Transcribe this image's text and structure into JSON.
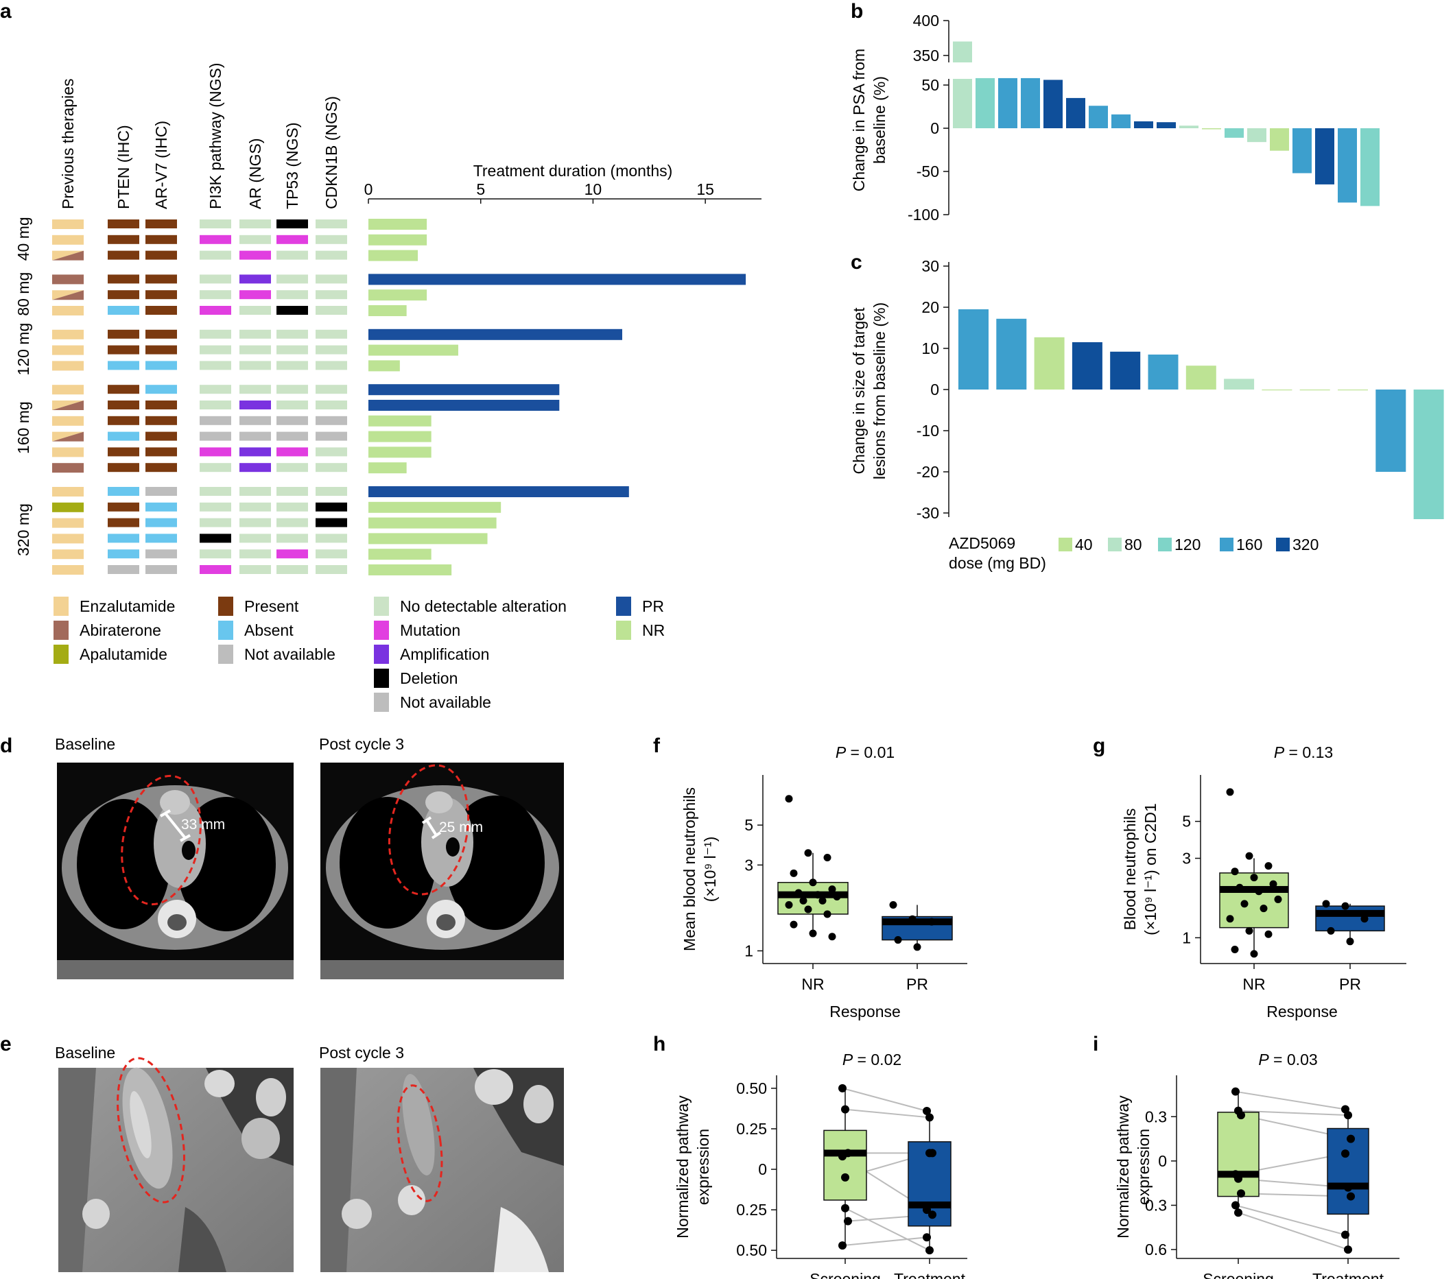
{
  "colors": {
    "enzalutamide": "#f3d293",
    "abiraterone": "#a26a5b",
    "apalutamide": "#a4ac14",
    "present": "#7b3a10",
    "absent": "#68c6ee",
    "not_available": "#bdbdbd",
    "no_alteration": "#cbe3c6",
    "mutation": "#e13ee0",
    "amplification": "#7a32e0",
    "deletion": "#000000",
    "pr": "#1a4f9d",
    "nr": "#bde394",
    "dose40": "#bde394",
    "dose80": "#b6e3c7",
    "dose120": "#7fd4c8",
    "dose160": "#3d9fcd",
    "dose320": "#0f4f9a",
    "box_nr": "#bde394",
    "box_pr": "#14539d",
    "ellipse": "#e3261f"
  },
  "panel_a": {
    "letter": "a",
    "columns": [
      "Previous therapies",
      "PTEN (IHC)",
      "AR-V7 (IHC)",
      "PI3K pathway (NGS)",
      "AR (NGS)",
      "TP53 (NGS)",
      "CDKN1B (NGS)"
    ],
    "dose_groups": [
      "40 mg",
      "80 mg",
      "120 mg",
      "160 mg",
      "320 mg"
    ],
    "axis_title": "Treatment duration (months)",
    "ticks": [
      0,
      5,
      10,
      15
    ],
    "xmax": 17.5,
    "patients": [
      {
        "dose": "40 mg",
        "therapy": "E",
        "pten": "P",
        "arv7": "P",
        "pi3k": "N",
        "ar": "N",
        "tp53": "D",
        "cdkn1b": "N",
        "duration": 2.6,
        "response": "NR"
      },
      {
        "dose": "40 mg",
        "therapy": "E",
        "pten": "P",
        "arv7": "P",
        "pi3k": "M",
        "ar": "N",
        "tp53": "M",
        "cdkn1b": "N",
        "duration": 2.6,
        "response": "NR"
      },
      {
        "dose": "40 mg",
        "therapy": "EA",
        "pten": "P",
        "arv7": "P",
        "pi3k": "N",
        "ar": "M",
        "tp53": "N",
        "cdkn1b": "N",
        "duration": 2.2,
        "response": "NR"
      },
      {
        "dose": "80 mg",
        "therapy": "A",
        "pten": "P",
        "arv7": "P",
        "pi3k": "N",
        "ar": "A",
        "tp53": "N",
        "cdkn1b": "N",
        "duration": 16.8,
        "response": "PR"
      },
      {
        "dose": "80 mg",
        "therapy": "EA",
        "pten": "P",
        "arv7": "P",
        "pi3k": "N",
        "ar": "M",
        "tp53": "N",
        "cdkn1b": "N",
        "duration": 2.6,
        "response": "NR"
      },
      {
        "dose": "80 mg",
        "therapy": "E",
        "pten": "B",
        "arv7": "P",
        "pi3k": "M",
        "ar": "N",
        "tp53": "D",
        "cdkn1b": "N",
        "duration": 1.7,
        "response": "NR"
      },
      {
        "dose": "120 mg",
        "therapy": "E",
        "pten": "P",
        "arv7": "P",
        "pi3k": "N",
        "ar": "N",
        "tp53": "N",
        "cdkn1b": "N",
        "duration": 11.3,
        "response": "PR"
      },
      {
        "dose": "120 mg",
        "therapy": "E",
        "pten": "P",
        "arv7": "P",
        "pi3k": "N",
        "ar": "N",
        "tp53": "N",
        "cdkn1b": "N",
        "duration": 4.0,
        "response": "NR"
      },
      {
        "dose": "120 mg",
        "therapy": "E",
        "pten": "B",
        "arv7": "B",
        "pi3k": "N",
        "ar": "N",
        "tp53": "N",
        "cdkn1b": "N",
        "duration": 1.4,
        "response": "NR"
      },
      {
        "dose": "160 mg",
        "therapy": "E",
        "pten": "P",
        "arv7": "B",
        "pi3k": "N",
        "ar": "N",
        "tp53": "N",
        "cdkn1b": "N",
        "duration": 8.5,
        "response": "PR"
      },
      {
        "dose": "160 mg",
        "therapy": "EA",
        "pten": "P",
        "arv7": "P",
        "pi3k": "N",
        "ar": "A",
        "tp53": "N",
        "cdkn1b": "N",
        "duration": 8.5,
        "response": "PR"
      },
      {
        "dose": "160 mg",
        "therapy": "E",
        "pten": "P",
        "arv7": "P",
        "pi3k": "X",
        "ar": "X",
        "tp53": "X",
        "cdkn1b": "X",
        "duration": 2.8,
        "response": "NR"
      },
      {
        "dose": "160 mg",
        "therapy": "EA",
        "pten": "B",
        "arv7": "P",
        "pi3k": "X",
        "ar": "X",
        "tp53": "X",
        "cdkn1b": "X",
        "duration": 2.8,
        "response": "NR"
      },
      {
        "dose": "160 mg",
        "therapy": "E",
        "pten": "P",
        "arv7": "P",
        "pi3k": "M",
        "ar": "A",
        "tp53": "M",
        "cdkn1b": "N",
        "duration": 2.8,
        "response": "NR"
      },
      {
        "dose": "160 mg",
        "therapy": "A",
        "pten": "P",
        "arv7": "P",
        "pi3k": "N",
        "ar": "A",
        "tp53": "N",
        "cdkn1b": "N",
        "duration": 1.7,
        "response": "NR"
      },
      {
        "dose": "320 mg",
        "therapy": "E",
        "pten": "B",
        "arv7": "X",
        "pi3k": "N",
        "ar": "N",
        "tp53": "N",
        "cdkn1b": "N",
        "duration": 11.6,
        "response": "PR"
      },
      {
        "dose": "320 mg",
        "therapy": "L",
        "pten": "P",
        "arv7": "B",
        "pi3k": "N",
        "ar": "N",
        "tp53": "N",
        "cdkn1b": "D",
        "duration": 5.9,
        "response": "NR"
      },
      {
        "dose": "320 mg",
        "therapy": "E",
        "pten": "P",
        "arv7": "B",
        "pi3k": "N",
        "ar": "N",
        "tp53": "N",
        "cdkn1b": "D",
        "duration": 5.7,
        "response": "NR"
      },
      {
        "dose": "320 mg",
        "therapy": "E",
        "pten": "B",
        "arv7": "B",
        "pi3k": "D",
        "ar": "N",
        "tp53": "N",
        "cdkn1b": "N",
        "duration": 5.3,
        "response": "NR"
      },
      {
        "dose": "320 mg",
        "therapy": "E",
        "pten": "B",
        "arv7": "X",
        "pi3k": "N",
        "ar": "N",
        "tp53": "M",
        "cdkn1b": "N",
        "duration": 2.8,
        "response": "NR"
      },
      {
        "dose": "320 mg",
        "therapy": "E",
        "pten": "X",
        "arv7": "X",
        "pi3k": "M",
        "ar": "N",
        "tp53": "N",
        "cdkn1b": "N",
        "duration": 3.7,
        "response": "NR"
      }
    ],
    "legend": [
      [
        {
          "label": "Enzalutamide",
          "color": "enzalutamide"
        },
        {
          "label": "Abiraterone",
          "color": "abiraterone"
        },
        {
          "label": "Apalutamide",
          "color": "apalutamide"
        }
      ],
      [
        {
          "label": "Present",
          "color": "present"
        },
        {
          "label": "Absent",
          "color": "absent"
        },
        {
          "label": "Not available",
          "color": "not_available"
        }
      ],
      [
        {
          "label": "No detectable alteration",
          "color": "no_alteration"
        },
        {
          "label": "Mutation",
          "color": "mutation"
        },
        {
          "label": "Amplification",
          "color": "amplification"
        },
        {
          "label": "Deletion",
          "color": "deletion"
        },
        {
          "label": "Not available",
          "color": "not_available"
        }
      ],
      [
        {
          "label": "PR",
          "color": "pr"
        },
        {
          "label": "NR",
          "color": "nr"
        }
      ]
    ]
  },
  "chart_data": [
    {
      "panel": "b",
      "type": "bar",
      "ylabel": "Change in PSA from baseline (%)",
      "yticks_upper": [
        350,
        400
      ],
      "yticks_lower": [
        -100,
        -50,
        0,
        50
      ],
      "ylim": [
        -100,
        400
      ],
      "broken_axis": [
        60,
        340
      ],
      "values": [
        370,
        58,
        58,
        58,
        56,
        35,
        26,
        16,
        8,
        7,
        3,
        -1,
        -11,
        -16,
        -26,
        -52,
        -65,
        -86,
        -90
      ],
      "doses": [
        80,
        120,
        160,
        160,
        320,
        320,
        160,
        160,
        320,
        320,
        80,
        40,
        120,
        80,
        40,
        160,
        320,
        160,
        120
      ]
    },
    {
      "panel": "c",
      "type": "bar",
      "ylabel": "Change in size of target lesions from baseline (%)",
      "yticks": [
        -30,
        -20,
        -10,
        0,
        10,
        20,
        30
      ],
      "ylim": [
        -32,
        31
      ],
      "values": [
        19.5,
        17.2,
        12.7,
        11.5,
        9.2,
        8.5,
        5.8,
        2.6,
        0,
        -0.2,
        -0.2,
        -20,
        -31.5
      ],
      "doses": [
        160,
        160,
        40,
        320,
        320,
        160,
        40,
        80,
        40,
        40,
        40,
        160,
        120
      ],
      "legend_title": "AZD5069\ndose (mg BD)",
      "legend_items": [
        "40",
        "80",
        "120",
        "160",
        "320"
      ]
    },
    {
      "panel": "f",
      "type": "box",
      "title": "P = 0.01",
      "xlabel": "Response",
      "ylabel": "Mean blood neutrophils (×10⁹ l⁻¹)",
      "yscale": "log",
      "yticks": [
        1,
        3,
        5
      ],
      "ylim": [
        0.85,
        9.5
      ],
      "categories": [
        "NR",
        "PR"
      ],
      "boxes": [
        {
          "median": 2.05,
          "q1": 1.6,
          "q3": 2.4,
          "whisker_low": 1.2,
          "whisker_high": 3.5
        },
        {
          "median": 1.45,
          "q1": 1.15,
          "q3": 1.55,
          "whisker_low": 1.05,
          "whisker_high": 1.8
        }
      ],
      "points": [
        [
          7.0,
          3.5,
          3.3,
          2.7,
          2.4,
          2.2,
          2.1,
          2.05,
          2.0,
          1.9,
          1.9,
          1.8,
          1.7,
          1.6,
          1.4,
          1.25,
          1.2
        ],
        [
          1.8,
          1.5,
          1.45,
          1.15,
          1.05
        ]
      ]
    },
    {
      "panel": "g",
      "type": "box",
      "title": "P = 0.13",
      "xlabel": "Response",
      "ylabel": "Blood neutrophils (×10⁹ l⁻¹) on C2D1",
      "yscale": "log",
      "yticks": [
        1,
        3,
        5
      ],
      "ylim": [
        0.7,
        9.5
      ],
      "categories": [
        "NR",
        "PR"
      ],
      "boxes": [
        {
          "median": 1.95,
          "q1": 1.15,
          "q3": 2.45,
          "whisker_low": 0.8,
          "whisker_high": 3.0
        },
        {
          "median": 1.4,
          "q1": 1.1,
          "q3": 1.55,
          "whisker_low": 0.95,
          "whisker_high": 1.6
        }
      ],
      "points": [
        [
          7.5,
          3.1,
          2.7,
          2.5,
          2.3,
          2.1,
          2.0,
          1.9,
          1.7,
          1.6,
          1.5,
          1.3,
          1.1,
          1.05,
          0.85,
          0.8
        ],
        [
          1.6,
          1.55,
          1.3,
          1.1,
          0.95
        ]
      ]
    },
    {
      "panel": "h",
      "type": "box",
      "title": "P = 0.02",
      "ylabel": "Normalized pathway expression",
      "yticks": [
        -0.5,
        -0.25,
        0,
        0.25,
        0.5
      ],
      "ytick_labels": [
        "0.50",
        "0.25",
        "0",
        "0.25",
        "0.50"
      ],
      "ylim": [
        -0.55,
        0.58
      ],
      "categories": [
        "Screening",
        "Treatment"
      ],
      "boxes": [
        {
          "median": 0.1,
          "q1": -0.19,
          "q3": 0.24,
          "whisker_low": -0.48,
          "whisker_high": 0.5
        },
        {
          "median": -0.22,
          "q1": -0.35,
          "q3": 0.17,
          "whisker_low": -0.5,
          "whisker_high": 0.36
        }
      ],
      "pairs": [
        [
          0.5,
          0.36
        ],
        [
          0.37,
          0.32
        ],
        [
          0.1,
          0.1
        ],
        [
          0.08,
          -0.25
        ],
        [
          -0.05,
          0.1
        ],
        [
          -0.32,
          -0.28
        ],
        [
          -0.47,
          -0.42
        ],
        [
          -0.24,
          -0.5
        ]
      ]
    },
    {
      "panel": "i",
      "type": "box",
      "title": "P = 0.03",
      "ylabel": "Normalized pathway expression",
      "yticks": [
        -0.6,
        -0.3,
        0,
        0.3
      ],
      "ytick_labels": [
        "0.6",
        "0.3",
        "0",
        "0.3"
      ],
      "ylim": [
        -0.66,
        0.58
      ],
      "categories": [
        "Screening",
        "Treatment"
      ],
      "boxes": [
        {
          "median": -0.09,
          "q1": -0.24,
          "q3": 0.33,
          "whisker_low": -0.35,
          "whisker_high": 0.47
        },
        {
          "median": -0.17,
          "q1": -0.36,
          "q3": 0.22,
          "whisker_low": -0.6,
          "whisker_high": 0.35
        }
      ],
      "pairs": [
        [
          0.47,
          0.35
        ],
        [
          0.34,
          0.31
        ],
        [
          0.31,
          0.15
        ],
        [
          -0.09,
          0.05
        ],
        [
          -0.12,
          -0.18
        ],
        [
          -0.22,
          -0.24
        ],
        [
          -0.3,
          -0.5
        ],
        [
          -0.35,
          -0.6
        ]
      ]
    }
  ],
  "panel_d": {
    "letter": "d",
    "left_label": "Baseline",
    "right_label": "Post cycle 3",
    "left_measure": "33 mm",
    "right_measure": "25 mm"
  },
  "panel_e": {
    "letter": "e",
    "left_label": "Baseline",
    "right_label": "Post cycle 3"
  }
}
